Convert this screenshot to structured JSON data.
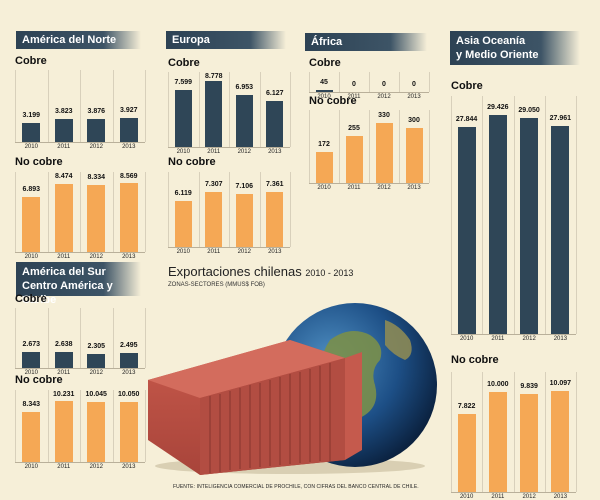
{
  "title": "Exportaciones chilenas",
  "title_years": "2010 - 2013",
  "subtitle": "ZONAS-SECTORES (MMUS$ FOB)",
  "source": "FUENTE: INTELIGENCIA COMERCIAL DE PROCHILE, CON CIFRAS DEL BANCO CENTRAL DE CHILE.",
  "colors": {
    "cobre": "#2f4657",
    "no_cobre": "#f5a855",
    "header": "#2d4254",
    "background": "#f6efd8"
  },
  "labels": {
    "cobre": "Cobre",
    "no_cobre": "No cobre"
  },
  "chart_data": [
    {
      "type": "bar",
      "region": "América del Norte",
      "series_label": "Cobre",
      "categories": [
        "2010",
        "2011",
        "2012",
        "2013"
      ],
      "values": [
        3199,
        3823,
        3876,
        3927
      ],
      "value_labels": [
        "3.199",
        "3.823",
        "3.876",
        "3.927"
      ]
    },
    {
      "type": "bar",
      "region": "América del Norte",
      "series_label": "No cobre",
      "categories": [
        "2010",
        "2011",
        "2012",
        "2013"
      ],
      "values": [
        6893,
        8474,
        8334,
        8569
      ],
      "value_labels": [
        "6.893",
        "8.474",
        "8.334",
        "8.569"
      ]
    },
    {
      "type": "bar",
      "region": "Europa",
      "series_label": "Cobre",
      "categories": [
        "2010",
        "2011",
        "2012",
        "2013"
      ],
      "values": [
        7599,
        8778,
        6953,
        6127
      ],
      "value_labels": [
        "7.599",
        "8.778",
        "6.953",
        "6.127"
      ]
    },
    {
      "type": "bar",
      "region": "Europa",
      "series_label": "No cobre",
      "categories": [
        "2010",
        "2011",
        "2012",
        "2013"
      ],
      "values": [
        6119,
        7307,
        7106,
        7361
      ],
      "value_labels": [
        "6.119",
        "7.307",
        "7.106",
        "7.361"
      ]
    },
    {
      "type": "bar",
      "region": "África",
      "series_label": "Cobre",
      "categories": [
        "2010",
        "2011",
        "2012",
        "2013"
      ],
      "values": [
        45,
        0,
        0,
        0
      ],
      "value_labels": [
        "45",
        "0",
        "0",
        "0"
      ]
    },
    {
      "type": "bar",
      "region": "África",
      "series_label": "No cobre",
      "categories": [
        "2010",
        "2011",
        "2012",
        "2013"
      ],
      "values": [
        172,
        255,
        330,
        300
      ],
      "value_labels": [
        "172",
        "255",
        "330",
        "300"
      ]
    },
    {
      "type": "bar",
      "region": "Asia Oceanía y Medio Oriente",
      "series_label": "Cobre",
      "categories": [
        "2010",
        "2011",
        "2012",
        "2013"
      ],
      "values": [
        27844,
        29426,
        29050,
        27961
      ],
      "value_labels": [
        "27.844",
        "29.426",
        "29.050",
        "27.961"
      ]
    },
    {
      "type": "bar",
      "region": "Asia Oceanía y Medio Oriente",
      "series_label": "No cobre",
      "categories": [
        "2010",
        "2011",
        "2012",
        "2013"
      ],
      "values": [
        7822,
        10000,
        9839,
        10097
      ],
      "value_labels": [
        "7.822",
        "10.000",
        "9.839",
        "10.097"
      ]
    },
    {
      "type": "bar",
      "region": "América del Sur Centro América y Caribe",
      "series_label": "Cobre",
      "categories": [
        "2010",
        "2011",
        "2012",
        "2013"
      ],
      "values": [
        2673,
        2638,
        2305,
        2495
      ],
      "value_labels": [
        "2.673",
        "2.638",
        "2.305",
        "2.495"
      ]
    },
    {
      "type": "bar",
      "region": "América del Sur Centro América y Caribe",
      "series_label": "No cobre",
      "categories": [
        "2010",
        "2011",
        "2012",
        "2013"
      ],
      "values": [
        8343,
        10231,
        10045,
        10050
      ],
      "value_labels": [
        "8.343",
        "10.231",
        "10.045",
        "10.050"
      ]
    }
  ],
  "region_headers": [
    {
      "lines": [
        "América del Norte"
      ]
    },
    {
      "lines": [
        "Europa"
      ]
    },
    {
      "lines": [
        "África"
      ]
    },
    {
      "lines": [
        "Asia Oceanía",
        "y Medio Oriente"
      ]
    },
    {
      "lines": [
        "América del Sur",
        "Centro América y Caribe"
      ]
    }
  ]
}
